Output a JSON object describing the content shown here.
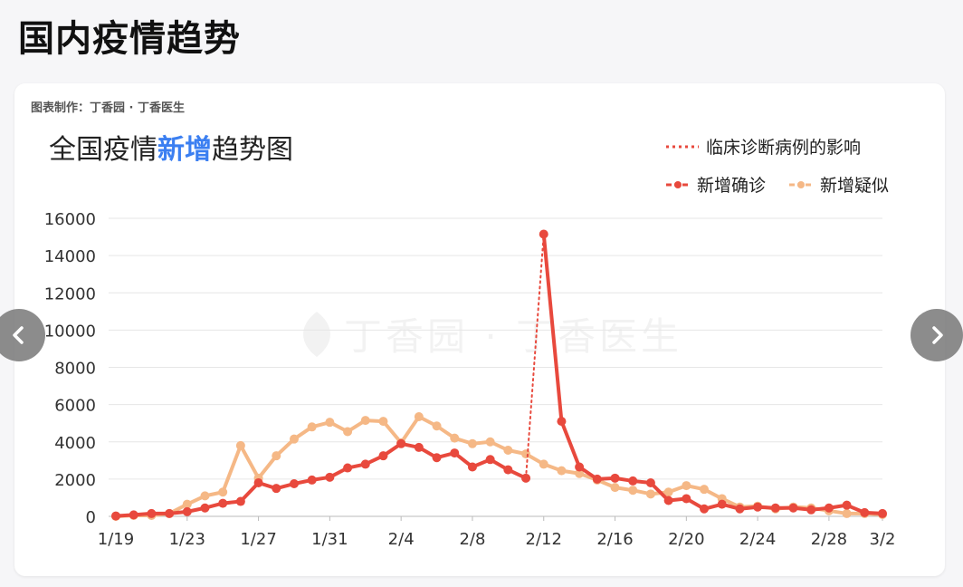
{
  "page": {
    "title": "国内疫情趋势"
  },
  "card": {
    "credit": "图表制作：丁香园 · 丁香医生",
    "watermark": "丁香园 · 丁香医生"
  },
  "chart_data": {
    "type": "line",
    "title_parts": [
      "全国疫情",
      "新增",
      "趋势图"
    ],
    "colors": {
      "confirmed": "#e8493d",
      "suspected": "#f5b886",
      "highlight": "#3b7ff1"
    },
    "legend": {
      "clinical": "临床诊断病例的影响",
      "confirmed": "新增确诊",
      "suspected": "新增疑似"
    },
    "x_labels": [
      "1/19",
      "1/23",
      "1/27",
      "1/31",
      "2/4",
      "2/8",
      "2/12",
      "2/16",
      "2/20",
      "2/24",
      "2/28",
      "3/2"
    ],
    "y_ticks": [
      0,
      2000,
      4000,
      6000,
      8000,
      10000,
      12000,
      14000,
      16000
    ],
    "ylim": [
      0,
      16000
    ],
    "dates": [
      "1/19",
      "1/20",
      "1/21",
      "1/22",
      "1/23",
      "1/24",
      "1/25",
      "1/26",
      "1/27",
      "1/28",
      "1/29",
      "1/30",
      "1/31",
      "2/1",
      "2/2",
      "2/3",
      "2/4",
      "2/5",
      "2/6",
      "2/7",
      "2/8",
      "2/9",
      "2/10",
      "2/11",
      "2/12",
      "2/13",
      "2/14",
      "2/15",
      "2/16",
      "2/17",
      "2/18",
      "2/19",
      "2/20",
      "2/21",
      "2/22",
      "2/23",
      "2/24",
      "2/25",
      "2/26",
      "2/27",
      "2/28",
      "2/29",
      "3/1",
      "3/2"
    ],
    "series": [
      {
        "name": "新增确诊",
        "values": [
          20,
          80,
          150,
          150,
          250,
          450,
          700,
          800,
          1800,
          1500,
          1750,
          1950,
          2100,
          2600,
          2800,
          3250,
          3900,
          3700,
          3150,
          3400,
          2650,
          3050,
          2500,
          2050,
          15150,
          5100,
          2650,
          2000,
          2050,
          1900,
          1800,
          850,
          950,
          400,
          650,
          400,
          500,
          450,
          450,
          350,
          450,
          600,
          200,
          150
        ]
      },
      {
        "name": "新增疑似",
        "values": [
          0,
          50,
          50,
          150,
          650,
          1100,
          1300,
          3800,
          2050,
          3250,
          4150,
          4800,
          5050,
          4550,
          5150,
          5100,
          3950,
          5350,
          4850,
          4200,
          3900,
          4000,
          3550,
          3350,
          2800,
          2450,
          2300,
          1950,
          1550,
          1400,
          1200,
          1300,
          1650,
          1450,
          950,
          500,
          550,
          400,
          500,
          450,
          300,
          150,
          150,
          100
        ]
      }
    ]
  }
}
